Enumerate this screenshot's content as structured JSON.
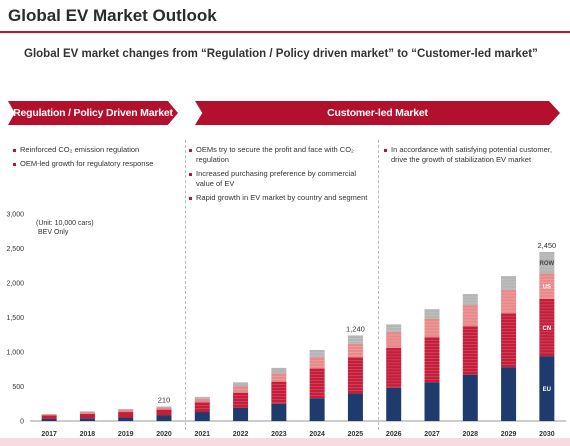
{
  "header": {
    "title": "Global EV Market Outlook",
    "subtitle": "Global EV market changes from “Regulation / Policy driven market” to “Customer-led market”"
  },
  "phases": {
    "regulation_label": "Regulation / Policy Driven Market",
    "customer_label": "Customer-led Market"
  },
  "bullets": {
    "col1": [
      "Reinforced CO₂ emission regulation",
      "OEM-led growth for regulatory response"
    ],
    "col2": [
      "OEMs try to secure the profit and face with CO₂ regulation",
      "Increased purchasing preference by commercial value of EV",
      "Rapid growth in EV market by country and segment"
    ],
    "col3": [
      "In accordance with satisfying potential customer, drive the growth of stabilization EV market"
    ]
  },
  "unit_note": {
    "line1": "(Unit: 10,000 cars)",
    "line2": "BEV Only"
  },
  "colors": {
    "accent": "#c8102e",
    "EU": "#1f3b6e",
    "CN": "#c41e3a",
    "US": "#e98a8a",
    "ROW": "#b5b5b5"
  },
  "chart_data": {
    "type": "bar",
    "stacked": true,
    "ylim": [
      0,
      3000
    ],
    "yticks": [
      "0",
      "500",
      "1,000",
      "1,500",
      "2,000",
      "2,500",
      "3,000"
    ],
    "categories": [
      "2017",
      "2018",
      "2019",
      "2020",
      "2021",
      "2022",
      "2023",
      "2024",
      "2025",
      "2026",
      "2027",
      "2028",
      "2029",
      "2030"
    ],
    "series": [
      {
        "name": "EU",
        "values": [
          30,
          40,
          50,
          80,
          130,
          190,
          250,
          330,
          400,
          480,
          560,
          670,
          780,
          940
        ]
      },
      {
        "name": "CN",
        "values": [
          50,
          65,
          80,
          85,
          140,
          220,
          320,
          430,
          520,
          580,
          650,
          700,
          780,
          830
        ]
      },
      {
        "name": "US",
        "values": [
          15,
          25,
          30,
          30,
          50,
          90,
          120,
          160,
          200,
          230,
          270,
          310,
          340,
          370
        ]
      },
      {
        "name": "ROW",
        "values": [
          5,
          10,
          15,
          15,
          30,
          60,
          80,
          110,
          120,
          110,
          140,
          160,
          200,
          310
        ]
      }
    ],
    "data_labels": {
      "2020": "210",
      "2025": "1,240",
      "2030": "2,450"
    },
    "legend": "inside-last-bar",
    "grid": false
  }
}
